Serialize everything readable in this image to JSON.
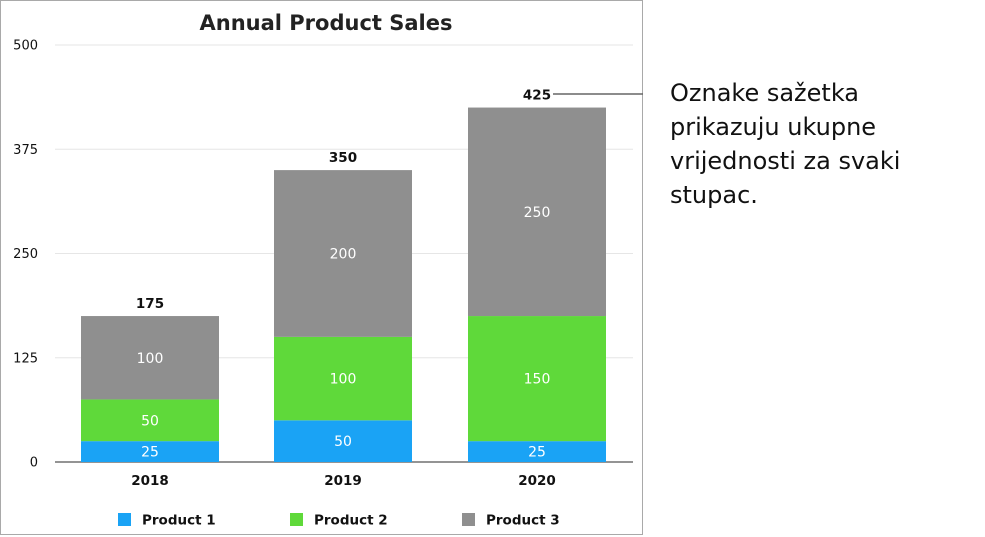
{
  "chart_data": {
    "type": "bar",
    "stacked": true,
    "title": "Annual Product Sales",
    "categories": [
      "2018",
      "2019",
      "2020"
    ],
    "series": [
      {
        "name": "Product 1",
        "color": "#1aa3f5",
        "values": [
          25,
          50,
          25
        ]
      },
      {
        "name": "Product 2",
        "color": "#5fd93a",
        "values": [
          50,
          100,
          150
        ]
      },
      {
        "name": "Product 3",
        "color": "#8f8f8f",
        "values": [
          100,
          200,
          250
        ]
      }
    ],
    "totals": [
      175,
      350,
      425
    ],
    "ylim": [
      0,
      500
    ],
    "yticks": [
      0,
      125,
      250,
      375,
      500
    ],
    "grid": true,
    "legend": "bottom"
  },
  "callout": {
    "text": "Oznake sažetka prikazuju ukupne vrijednosti za svaki stupac."
  }
}
